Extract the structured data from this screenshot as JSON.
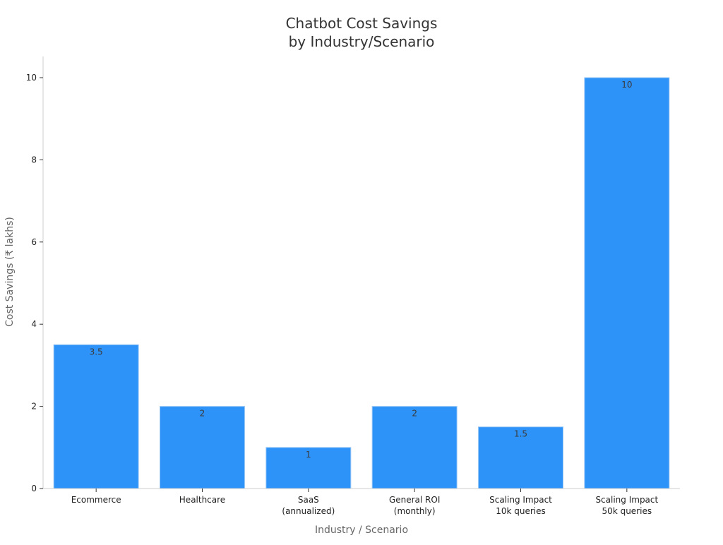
{
  "chart_data": {
    "type": "bar",
    "title_lines": [
      "Chatbot Cost Savings",
      "by Industry/Scenario"
    ],
    "xlabel": "Industry / Scenario",
    "ylabel": "Cost Savings (₹ lakhs)",
    "categories": [
      [
        "Ecommerce"
      ],
      [
        "Healthcare"
      ],
      [
        "SaaS",
        "(annualized)"
      ],
      [
        "General ROI",
        "(monthly)"
      ],
      [
        "Scaling Impact",
        "10k queries"
      ],
      [
        "Scaling Impact",
        "50k queries"
      ]
    ],
    "values": [
      3.5,
      2,
      1,
      2,
      1.5,
      10
    ],
    "value_labels": [
      "3.5",
      "2",
      "1",
      "2",
      "1.5",
      "10"
    ],
    "ylim": [
      0,
      10.5
    ],
    "yticks": [
      0,
      2,
      4,
      6,
      8,
      10
    ],
    "grid": false,
    "colors": {
      "bar": "#2e93f8",
      "bar_edge": "#9cc8f5",
      "axis": "#cccccc",
      "tick": "#333333"
    }
  }
}
